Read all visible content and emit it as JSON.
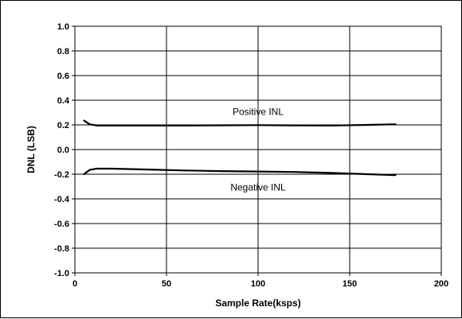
{
  "chart_data": {
    "type": "line",
    "title": "",
    "xlabel": "Sample Rate(ksps)",
    "ylabel": "DNL (LSB)",
    "xlim": [
      0,
      200
    ],
    "ylim": [
      -1.0,
      1.0
    ],
    "x_ticks": [
      "0",
      "50",
      "100",
      "150",
      "200"
    ],
    "y_ticks": [
      "1.0",
      "0.8",
      "0.6",
      "0.4",
      "0.2",
      "0.0",
      "-0.2",
      "-0.4",
      "-0.6",
      "-0.8",
      "-1.0"
    ],
    "grid": true,
    "series": [
      {
        "name": "Positive INL",
        "x": [
          5,
          8,
          12,
          20,
          40,
          60,
          80,
          100,
          120,
          140,
          160,
          175
        ],
        "y": [
          0.235,
          0.205,
          0.195,
          0.195,
          0.195,
          0.195,
          0.197,
          0.198,
          0.196,
          0.195,
          0.2,
          0.205
        ]
      },
      {
        "name": "Negative INL",
        "x": [
          5,
          8,
          12,
          20,
          40,
          60,
          80,
          100,
          120,
          140,
          160,
          175
        ],
        "y": [
          -0.2,
          -0.165,
          -0.155,
          -0.155,
          -0.162,
          -0.17,
          -0.175,
          -0.178,
          -0.182,
          -0.19,
          -0.2,
          -0.208
        ]
      }
    ],
    "annotations": [
      {
        "text": "Positive INL",
        "x": 100,
        "y": 0.305
      },
      {
        "text": "Negative INL",
        "x": 100,
        "y": -0.305
      }
    ]
  }
}
